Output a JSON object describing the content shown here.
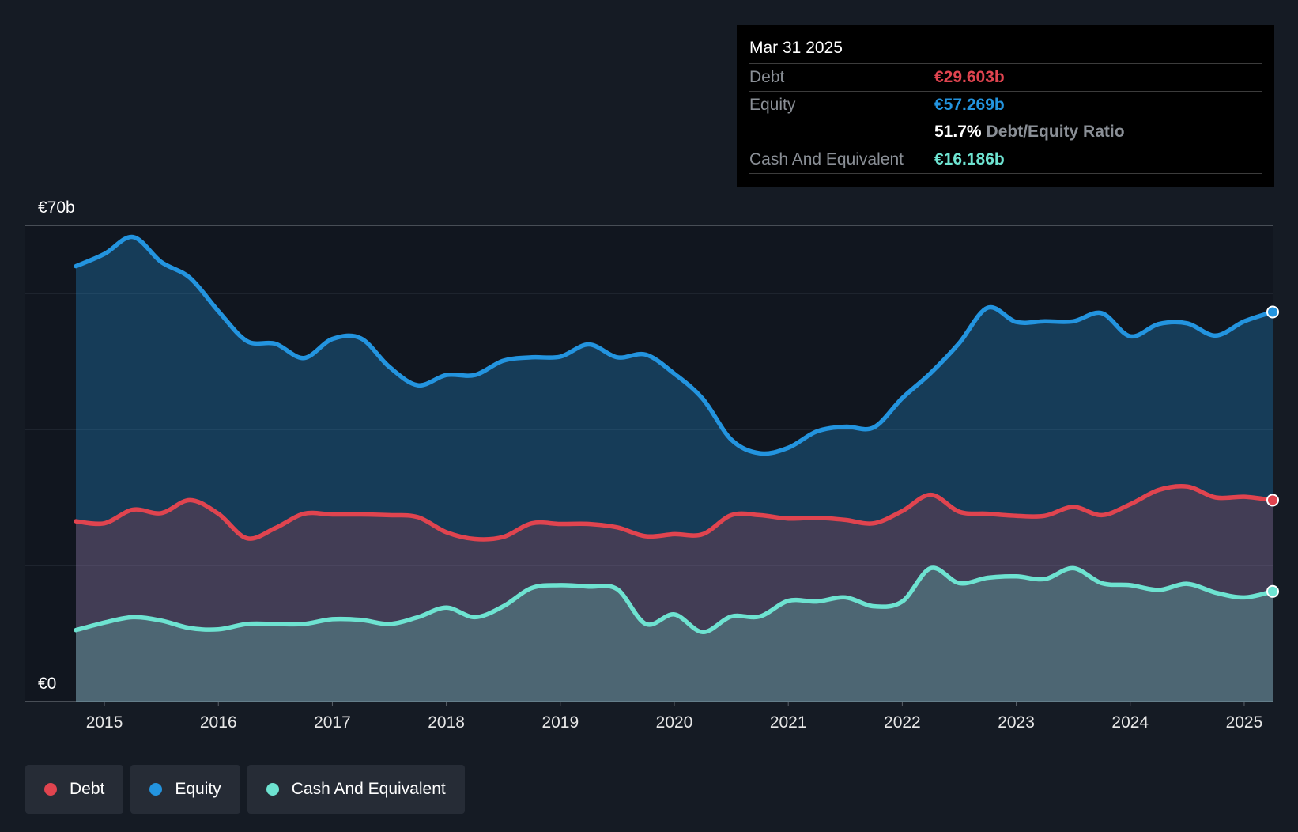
{
  "colors": {
    "background": "#151b24",
    "debt": "#e0444f",
    "equity": "#2394df",
    "cash": "#6ee3d1"
  },
  "tooltip": {
    "date": "Mar 31 2025",
    "debt_label": "Debt",
    "debt_value": "€29.603b",
    "equity_label": "Equity",
    "equity_value": "€57.269b",
    "ratio_value": "51.7%",
    "ratio_label": "Debt/Equity Ratio",
    "cash_label": "Cash And Equivalent",
    "cash_value": "€16.186b"
  },
  "legend": [
    {
      "label": "Debt",
      "color": "#e0444f"
    },
    {
      "label": "Equity",
      "color": "#2394df"
    },
    {
      "label": "Cash And Equivalent",
      "color": "#6ee3d1"
    }
  ],
  "chart_data": {
    "type": "area",
    "title": "",
    "ylim": [
      0,
      70
    ],
    "y_tick_labels": [
      {
        "value": 70,
        "label": "€70b"
      },
      {
        "value": 0,
        "label": "€0"
      }
    ],
    "gridlines": [
      70,
      60,
      40,
      20,
      0
    ],
    "xlim": [
      2014.75,
      2025.25
    ],
    "x_ticks": [
      2015,
      2016,
      2017,
      2018,
      2019,
      2020,
      2021,
      2022,
      2023,
      2024,
      2025
    ],
    "series": [
      {
        "name": "Equity",
        "color": "#2394df",
        "x": [
          2014.75,
          2015.0,
          2015.25,
          2015.5,
          2015.75,
          2016.0,
          2016.25,
          2016.5,
          2016.75,
          2017.0,
          2017.25,
          2017.5,
          2017.75,
          2018.0,
          2018.25,
          2018.5,
          2018.75,
          2019.0,
          2019.25,
          2019.5,
          2019.75,
          2020.0,
          2020.25,
          2020.5,
          2020.75,
          2021.0,
          2021.25,
          2021.5,
          2021.75,
          2022.0,
          2022.25,
          2022.5,
          2022.75,
          2023.0,
          2023.25,
          2023.5,
          2023.75,
          2024.0,
          2024.25,
          2024.5,
          2024.75,
          2025.0,
          2025.25
        ],
        "values": [
          64.0,
          65.8,
          68.3,
          64.6,
          62.3,
          57.4,
          53.0,
          52.6,
          50.5,
          53.3,
          53.4,
          49.2,
          46.5,
          48.0,
          48.0,
          50.1,
          50.6,
          50.7,
          52.5,
          50.6,
          51.0,
          48.2,
          44.5,
          38.5,
          36.5,
          37.3,
          39.7,
          40.4,
          40.3,
          44.6,
          48.3,
          52.7,
          57.9,
          55.8,
          55.9,
          55.9,
          57.1,
          53.7,
          55.5,
          55.6,
          53.8,
          55.9,
          57.269
        ]
      },
      {
        "name": "Debt",
        "color": "#e0444f",
        "x": [
          2014.75,
          2015.0,
          2015.25,
          2015.5,
          2015.75,
          2016.0,
          2016.25,
          2016.5,
          2016.75,
          2017.0,
          2017.25,
          2017.5,
          2017.75,
          2018.0,
          2018.25,
          2018.5,
          2018.75,
          2019.0,
          2019.25,
          2019.5,
          2019.75,
          2020.0,
          2020.25,
          2020.5,
          2020.75,
          2021.0,
          2021.25,
          2021.5,
          2021.75,
          2022.0,
          2022.25,
          2022.5,
          2022.75,
          2023.0,
          2023.25,
          2023.5,
          2023.75,
          2024.0,
          2024.25,
          2024.5,
          2024.75,
          2025.0,
          2025.25
        ],
        "values": [
          26.5,
          26.2,
          28.2,
          27.7,
          29.6,
          27.6,
          24.0,
          25.5,
          27.6,
          27.5,
          27.5,
          27.4,
          27.1,
          24.9,
          23.9,
          24.2,
          26.2,
          26.1,
          26.1,
          25.6,
          24.3,
          24.6,
          24.6,
          27.4,
          27.4,
          26.9,
          27.0,
          26.7,
          26.2,
          28.0,
          30.4,
          27.9,
          27.6,
          27.3,
          27.3,
          28.6,
          27.4,
          29.0,
          31.1,
          31.6,
          30.0,
          30.1,
          29.603
        ]
      },
      {
        "name": "Cash And Equivalent",
        "color": "#6ee3d1",
        "x": [
          2014.75,
          2015.0,
          2015.25,
          2015.5,
          2015.75,
          2016.0,
          2016.25,
          2016.5,
          2016.75,
          2017.0,
          2017.25,
          2017.5,
          2017.75,
          2018.0,
          2018.25,
          2018.5,
          2018.75,
          2019.0,
          2019.25,
          2019.5,
          2019.75,
          2020.0,
          2020.25,
          2020.5,
          2020.75,
          2021.0,
          2021.25,
          2021.5,
          2021.75,
          2022.0,
          2022.25,
          2022.5,
          2022.75,
          2023.0,
          2023.25,
          2023.5,
          2023.75,
          2024.0,
          2024.25,
          2024.5,
          2024.75,
          2025.0,
          2025.25
        ],
        "values": [
          10.5,
          11.6,
          12.4,
          11.9,
          10.8,
          10.6,
          11.4,
          11.4,
          11.4,
          12.1,
          12.0,
          11.4,
          12.4,
          13.8,
          12.4,
          14.0,
          16.7,
          17.1,
          16.9,
          16.5,
          11.4,
          12.8,
          10.2,
          12.5,
          12.5,
          14.8,
          14.7,
          15.3,
          14.0,
          14.7,
          19.6,
          17.4,
          18.2,
          18.4,
          18.0,
          19.6,
          17.4,
          17.1,
          16.4,
          17.3,
          16.0,
          15.3,
          16.186
        ]
      }
    ]
  }
}
